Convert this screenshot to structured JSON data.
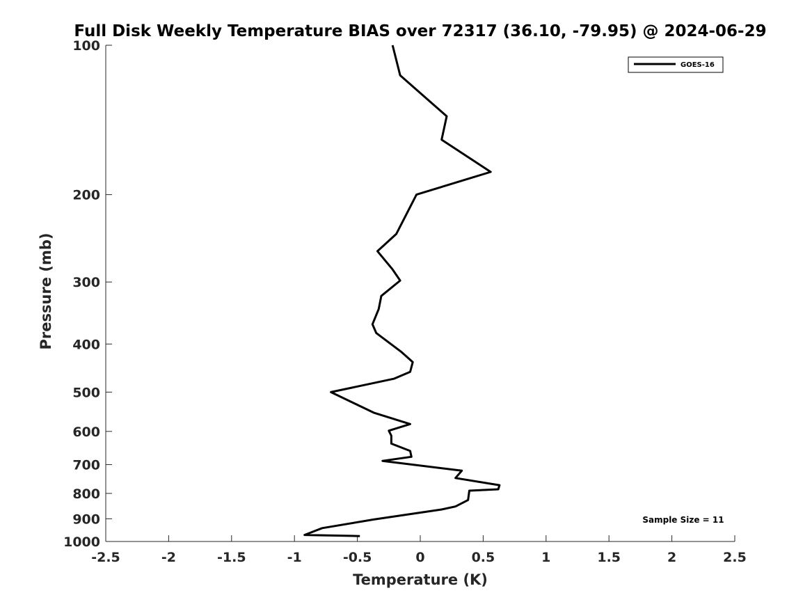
{
  "chart_data": {
    "type": "line",
    "title": "Full Disk Weekly Temperature BIAS over 72317 (36.10, -79.95) @ 2024-06-29",
    "xlabel": "Temperature (K)",
    "ylabel": "Pressure (mb)",
    "xlim": [
      -2.5,
      2.5
    ],
    "ylim": [
      100,
      1000
    ],
    "y_scale": "log",
    "y_reversed": true,
    "x_ticks": [
      -2.5,
      -2,
      -1.5,
      -1,
      -0.5,
      0,
      0.5,
      1,
      1.5,
      2,
      2.5
    ],
    "x_tick_labels": [
      "-2.5",
      "-2",
      "-1.5",
      "-1",
      "-0.5",
      "0",
      "0.5",
      "1",
      "1.5",
      "2",
      "2.5"
    ],
    "y_ticks": [
      100,
      200,
      300,
      400,
      500,
      600,
      700,
      800,
      900,
      1000
    ],
    "y_tick_labels": [
      "100",
      "200",
      "300",
      "400",
      "500",
      "600",
      "700",
      "800",
      "900",
      "1000"
    ],
    "grid": false,
    "legend_position": "top-right",
    "series": [
      {
        "name": "GOES-16",
        "color": "#000000",
        "x": [
          -0.22,
          -0.16,
          0.21,
          0.17,
          0.56,
          -0.03,
          -0.19,
          -0.34,
          -0.22,
          -0.16,
          -0.31,
          -0.33,
          -0.38,
          -0.35,
          -0.15,
          -0.06,
          -0.08,
          -0.21,
          -0.71,
          -0.37,
          -0.08,
          -0.25,
          -0.23,
          -0.23,
          -0.08,
          -0.07,
          -0.3,
          0.33,
          0.28,
          0.63,
          0.62,
          0.39,
          0.38,
          0.28,
          0.17,
          -0.37,
          -0.78,
          -0.92,
          -0.48
        ],
        "y": [
          100,
          115,
          139,
          155,
          180,
          200,
          240,
          260,
          283,
          298,
          320,
          340,
          365,
          380,
          415,
          435,
          455,
          470,
          500,
          550,
          580,
          598,
          612,
          635,
          657,
          675,
          688,
          720,
          745,
          770,
          785,
          790,
          825,
          850,
          862,
          903,
          940,
          970,
          975
        ]
      }
    ],
    "annotations": [
      "Sample Size = 11"
    ]
  }
}
